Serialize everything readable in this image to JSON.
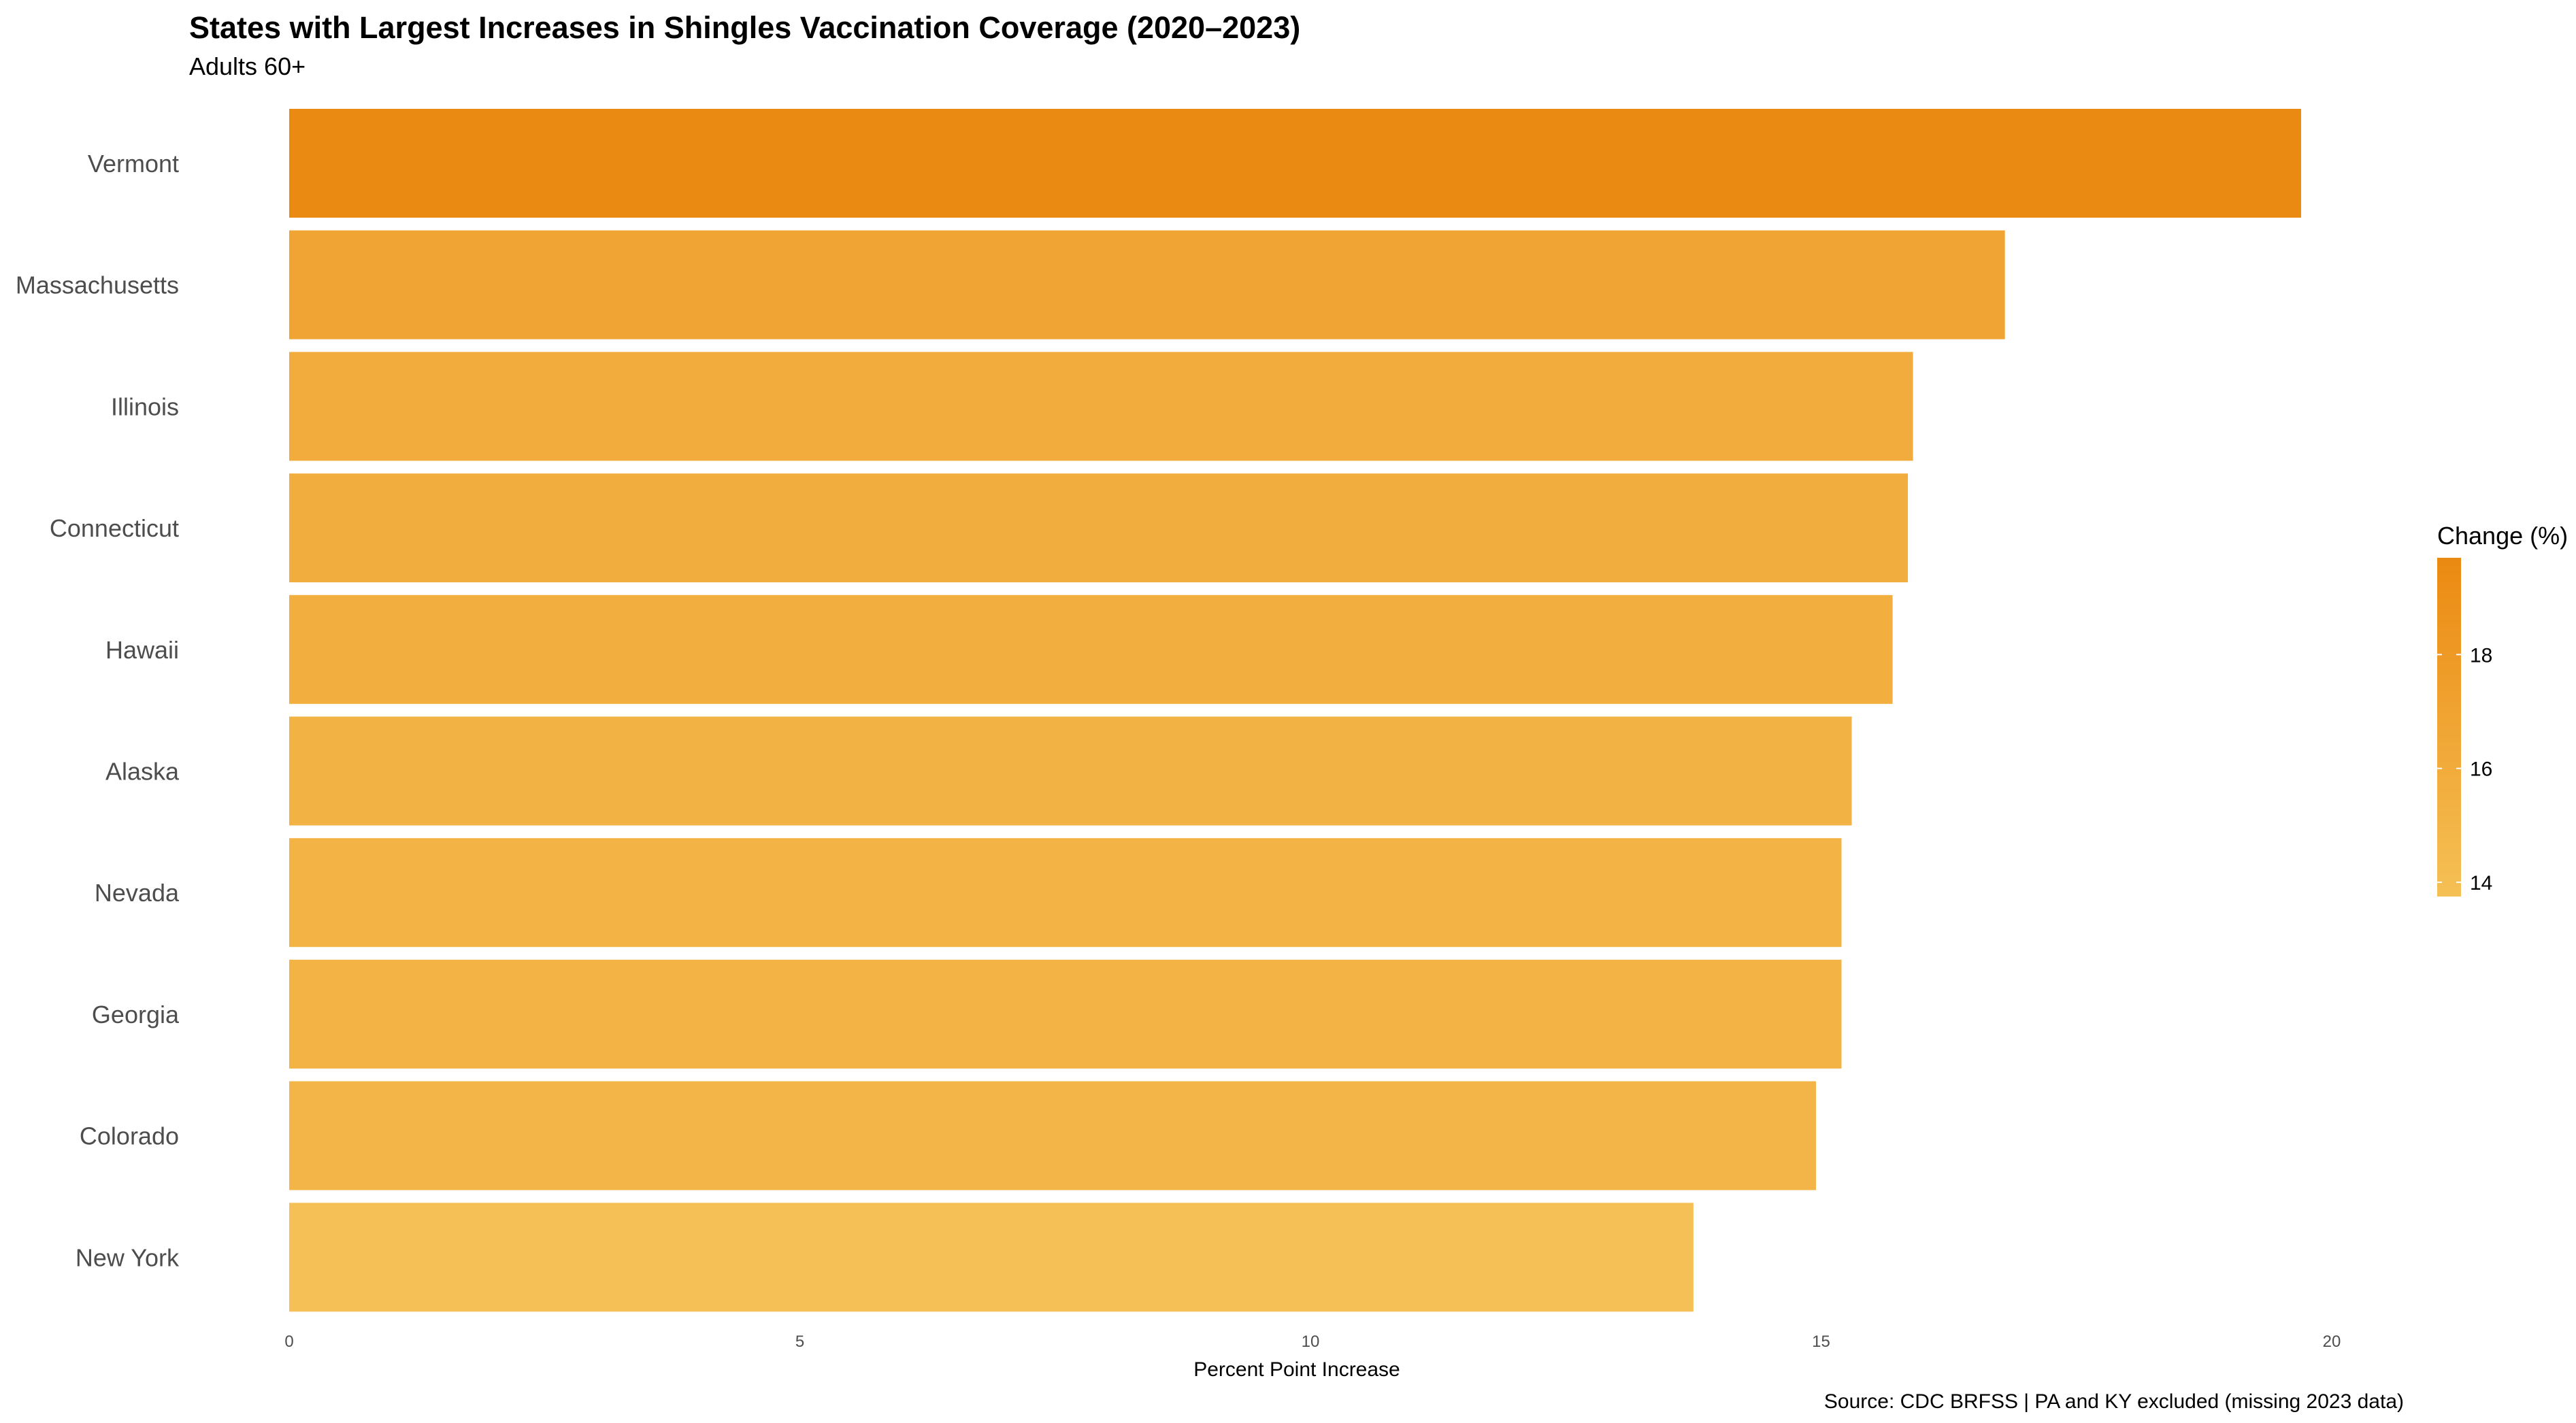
{
  "chart_data": {
    "type": "bar",
    "orientation": "horizontal",
    "title": "States with Largest Increases in Shingles Vaccination Coverage (2020–2023)",
    "subtitle": "Adults 60+",
    "xlabel": "Percent Point Increase",
    "ylabel": "",
    "caption": "Source: CDC BRFSS | PA and KY excluded (missing 2023 data)",
    "categories": [
      "Vermont",
      "Massachusetts",
      "Illinois",
      "Connecticut",
      "Hawaii",
      "Alaska",
      "Nevada",
      "Georgia",
      "Colorado",
      "New York"
    ],
    "values": [
      19.7,
      16.8,
      15.9,
      15.85,
      15.7,
      15.3,
      15.2,
      15.2,
      14.95,
      13.75
    ],
    "xlim": [
      0,
      20
    ],
    "x_ticks": [
      "0",
      "5",
      "10",
      "15",
      "20"
    ],
    "x_tick_values": [
      0,
      5,
      10,
      15,
      20
    ],
    "grid": false,
    "legend": {
      "title": "Change (%)",
      "placement": "right",
      "type": "colorbar",
      "range": [
        13.75,
        19.7
      ],
      "tick_values": [
        14,
        16,
        18
      ],
      "tick_labels": [
        "14",
        "16",
        "18"
      ],
      "color_low": "#f5c055",
      "color_high": "#eb8a12"
    }
  }
}
